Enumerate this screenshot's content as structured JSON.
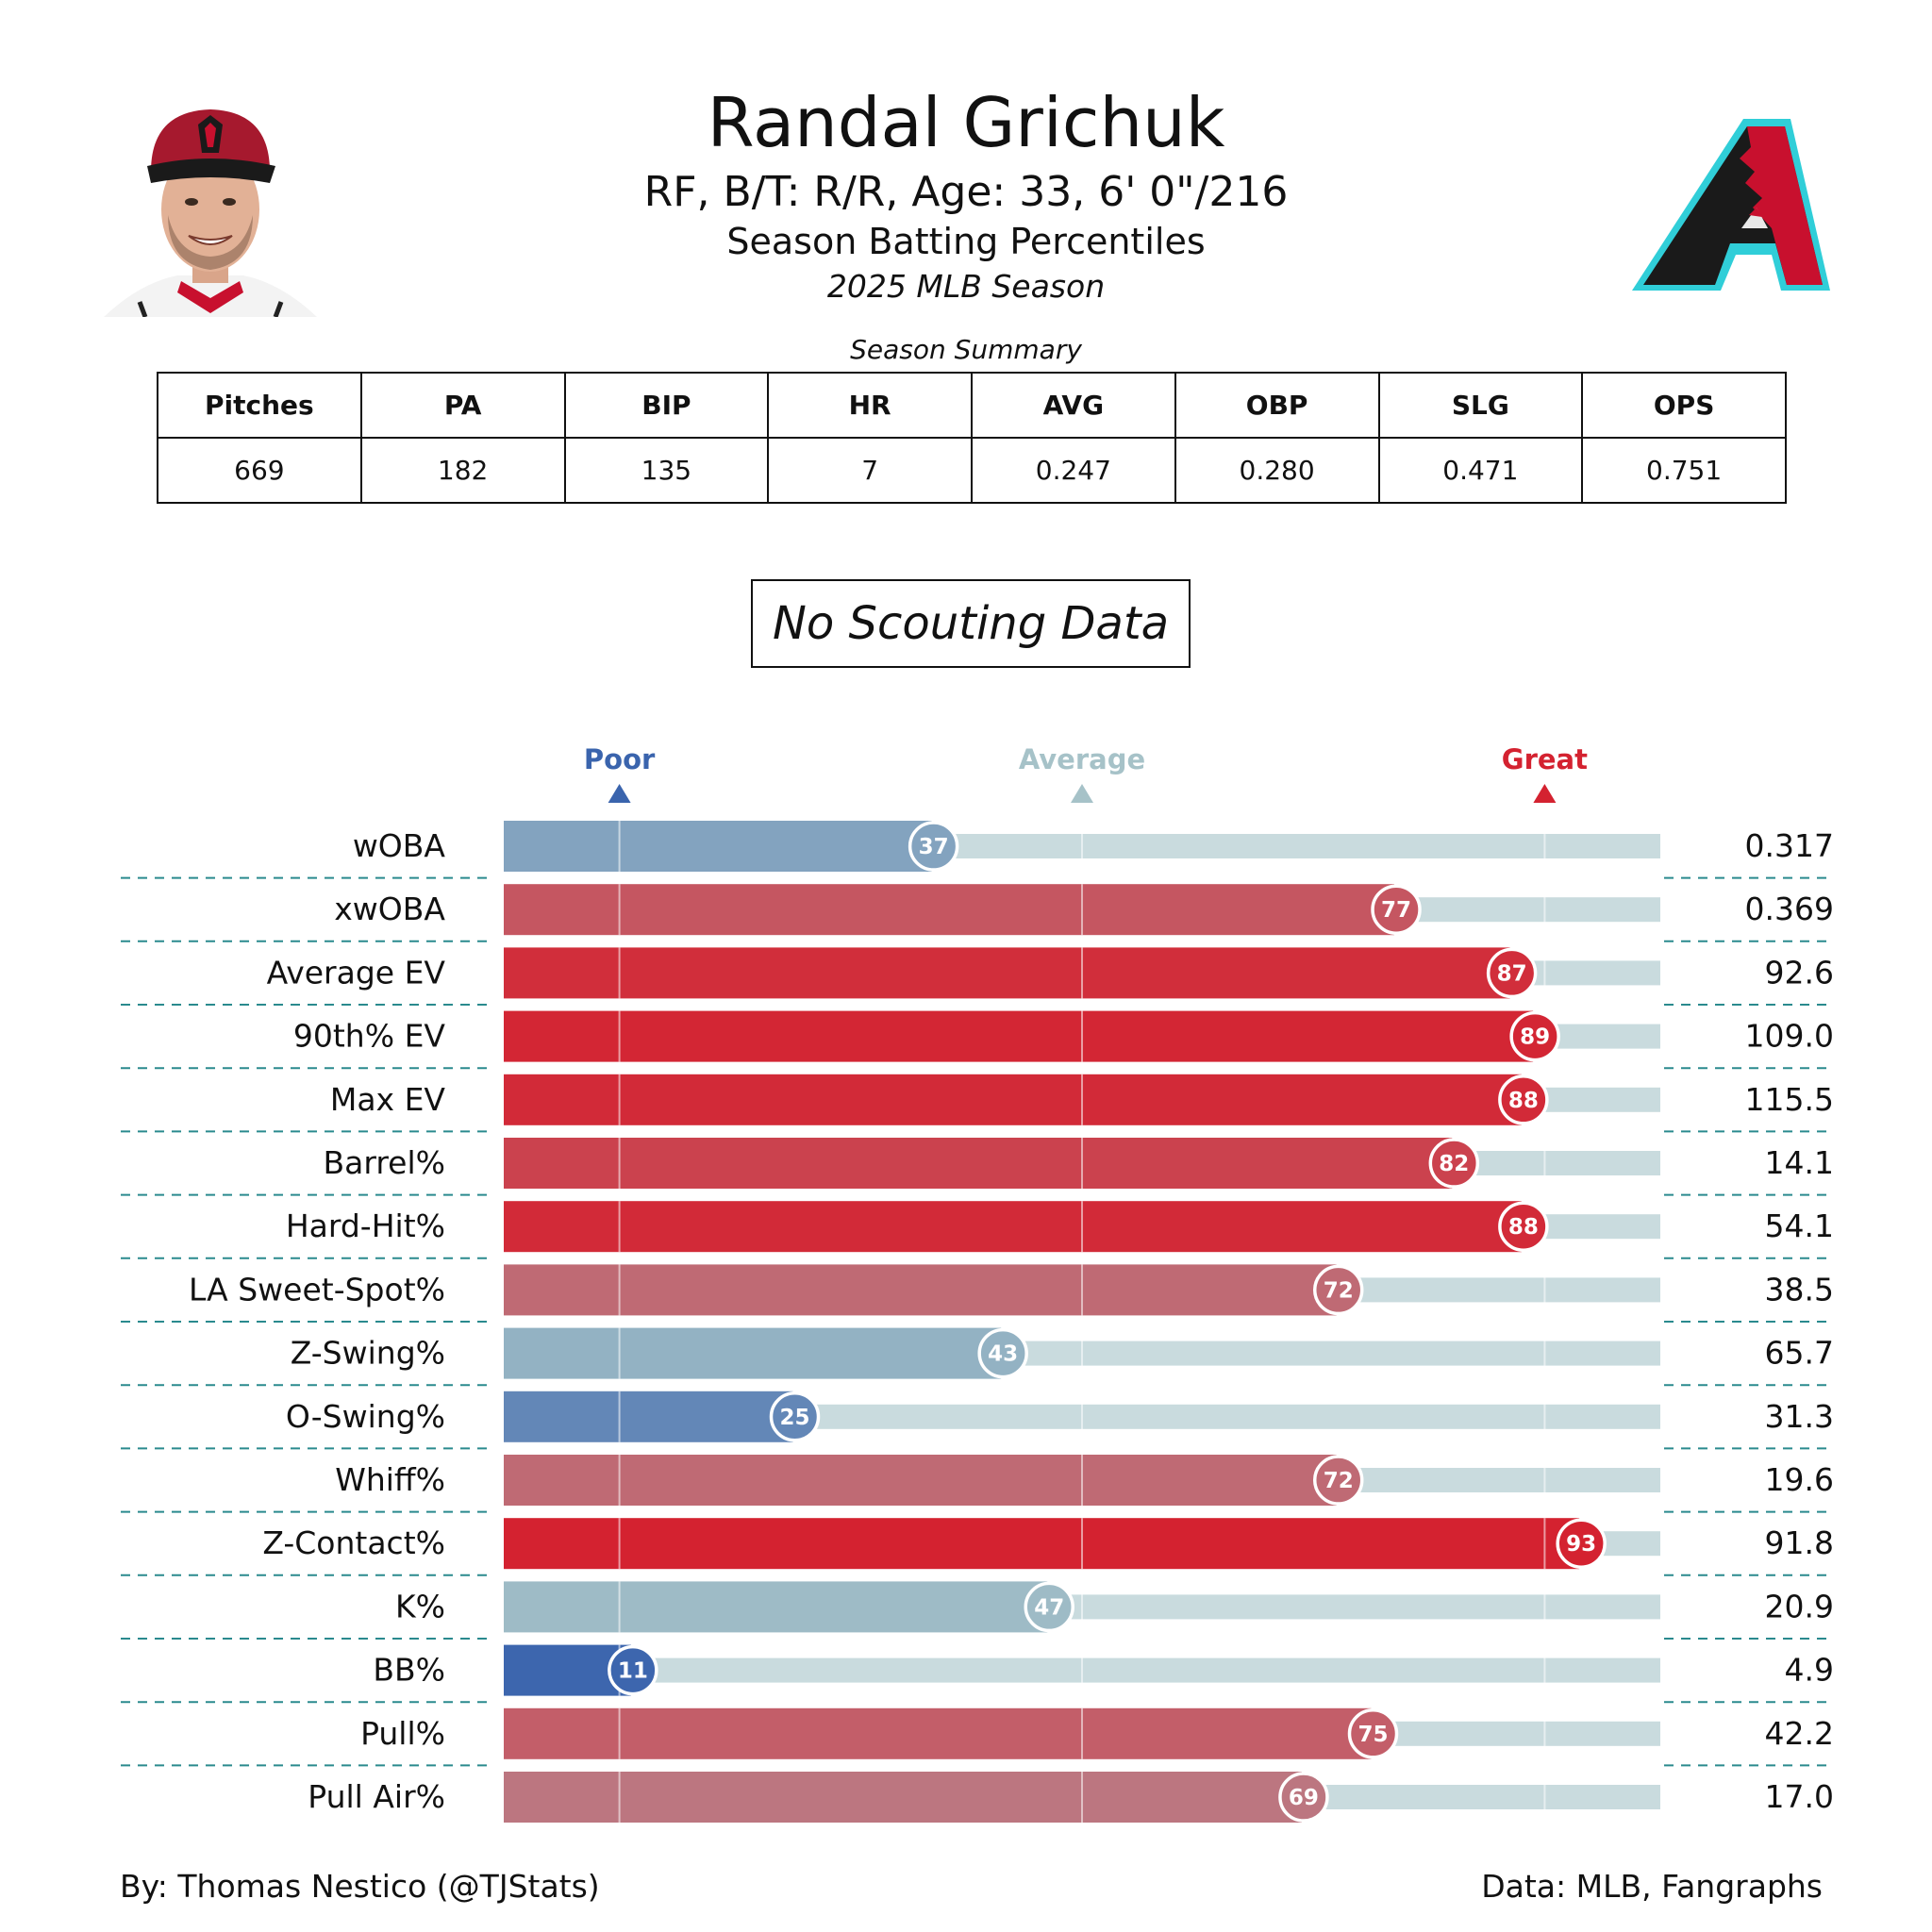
{
  "header": {
    "player_name": "Randal Grichuk",
    "player_info": "RF, B/T: R/R, Age: 33, 6' 0\"/216",
    "report_title": "Season Batting Percentiles",
    "season_label": "2025 MLB Season"
  },
  "summary": {
    "caption": "Season Summary",
    "columns": [
      "Pitches",
      "PA",
      "BIP",
      "HR",
      "AVG",
      "OBP",
      "SLG",
      "OPS"
    ],
    "values": [
      "669",
      "182",
      "135",
      "7",
      "0.247",
      "0.280",
      "0.471",
      "0.751"
    ]
  },
  "scouting_label": "No Scouting Data",
  "colors": {
    "great": "#d42230",
    "poor": "#3a64ad",
    "average": "#a6c2c8",
    "track": "#c9dbde",
    "divider": "#2a8a8e"
  },
  "chart_data": {
    "type": "bar",
    "orientation": "horizontal",
    "xlim": [
      0,
      100
    ],
    "scale_labels": [
      {
        "label": "Poor",
        "value": 10
      },
      {
        "label": "Average",
        "value": 50
      },
      {
        "label": "Great",
        "value": 90
      }
    ],
    "categories": [
      "wOBA",
      "xwOBA",
      "Average EV",
      "90th% EV",
      "Max EV",
      "Barrel%",
      "Hard-Hit%",
      "LA Sweet-Spot%",
      "Z-Swing%",
      "O-Swing%",
      "Whiff%",
      "Z-Contact%",
      "K%",
      "BB%",
      "Pull%",
      "Pull Air%"
    ],
    "percentiles": [
      37,
      77,
      87,
      89,
      88,
      82,
      88,
      72,
      43,
      25,
      72,
      93,
      47,
      11,
      75,
      69
    ],
    "stat_values": [
      "0.317",
      "0.369",
      "92.6",
      "109.0",
      "115.5",
      "14.1",
      "54.1",
      "38.5",
      "65.7",
      "31.3",
      "19.6",
      "91.8",
      "20.9",
      "4.9",
      "42.2",
      "17.0"
    ]
  },
  "footer": {
    "credit": "By: Thomas Nestico (@TJStats)",
    "source": "Data: MLB, Fangraphs"
  }
}
